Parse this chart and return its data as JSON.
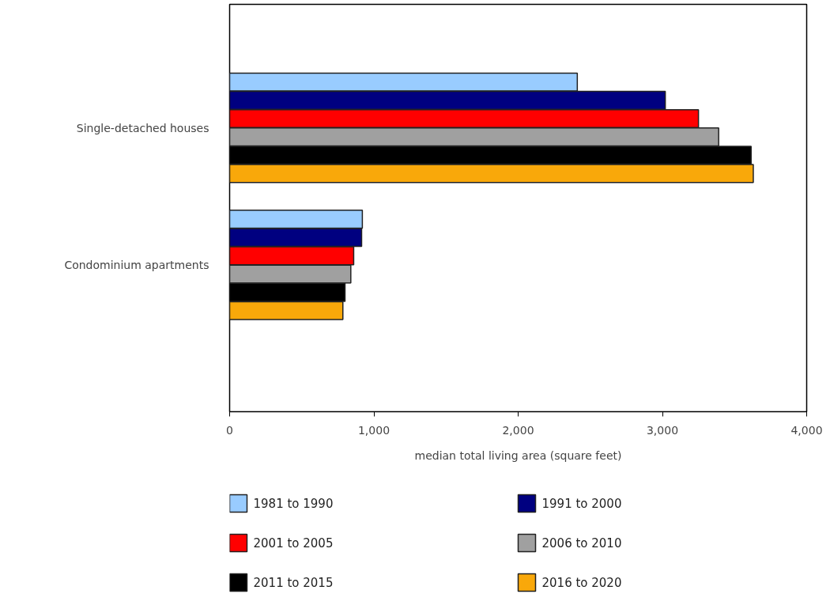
{
  "chart_data": {
    "type": "bar",
    "orientation": "horizontal",
    "categories": [
      "Single-detached houses",
      "Condominium apartments"
    ],
    "xlabel": "median total living area (square feet)",
    "xlim": [
      0,
      4000
    ],
    "xticks": [
      0,
      {
        "value": 1000,
        "label": "1,000"
      },
      {
        "value": 2000,
        "label": "2,000"
      },
      {
        "value": 3000,
        "label": "3,000"
      },
      {
        "value": 4000,
        "label": "4,000"
      }
    ],
    "legend": "bottom",
    "series": [
      {
        "name": "1981 to 1990",
        "color": "#99ccff",
        "values": [
          2410,
          920
        ]
      },
      {
        "name": "1991 to 2000",
        "color": "#000080",
        "values": [
          3020,
          915
        ]
      },
      {
        "name": "2001 to 2005",
        "color": "#ff0000",
        "values": [
          3250,
          860
        ]
      },
      {
        "name": "2006 to 2010",
        "color": "#a0a0a0",
        "values": [
          3390,
          840
        ]
      },
      {
        "name": "2011 to 2015",
        "color": "#000000",
        "values": [
          3615,
          800
        ]
      },
      {
        "name": "2016 to 2020",
        "color": "#f9a80a",
        "values": [
          3630,
          785
        ]
      }
    ]
  }
}
